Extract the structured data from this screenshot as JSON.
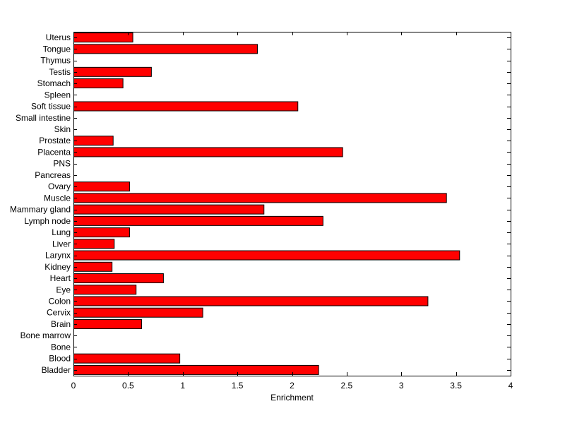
{
  "chart_data": {
    "type": "bar",
    "orientation": "horizontal",
    "xlabel": "Enrichment",
    "ylabel": "",
    "title": "",
    "xlim": [
      0,
      4
    ],
    "x_ticks": [
      0,
      0.5,
      1,
      1.5,
      2,
      2.5,
      3,
      3.5,
      4
    ],
    "x_tick_labels": [
      "0",
      "0.5",
      "1",
      "1.5",
      "2",
      "2.5",
      "3",
      "3.5",
      "4"
    ],
    "grid": false,
    "legend": "none",
    "bar_color": "#ff0000",
    "categories": [
      "Bladder",
      "Blood",
      "Bone",
      "Bone marrow",
      "Brain",
      "Cervix",
      "Colon",
      "Eye",
      "Heart",
      "Kidney",
      "Larynx",
      "Liver",
      "Lung",
      "Lymph node",
      "Mammary gland",
      "Muscle",
      "Ovary",
      "Pancreas",
      "PNS",
      "Placenta",
      "Prostate",
      "Skin",
      "Small intestine",
      "Soft tissue",
      "Spleen",
      "Stomach",
      "Testis",
      "Thymus",
      "Tongue",
      "Uterus"
    ],
    "values": [
      2.24,
      0.97,
      0,
      0,
      0.62,
      1.18,
      3.24,
      0.57,
      0.82,
      0.35,
      3.53,
      0.37,
      0.51,
      2.28,
      1.74,
      3.41,
      0.51,
      0,
      0,
      2.46,
      0.36,
      0,
      0,
      2.05,
      0,
      0.45,
      0.71,
      0,
      1.68,
      0.54
    ]
  }
}
